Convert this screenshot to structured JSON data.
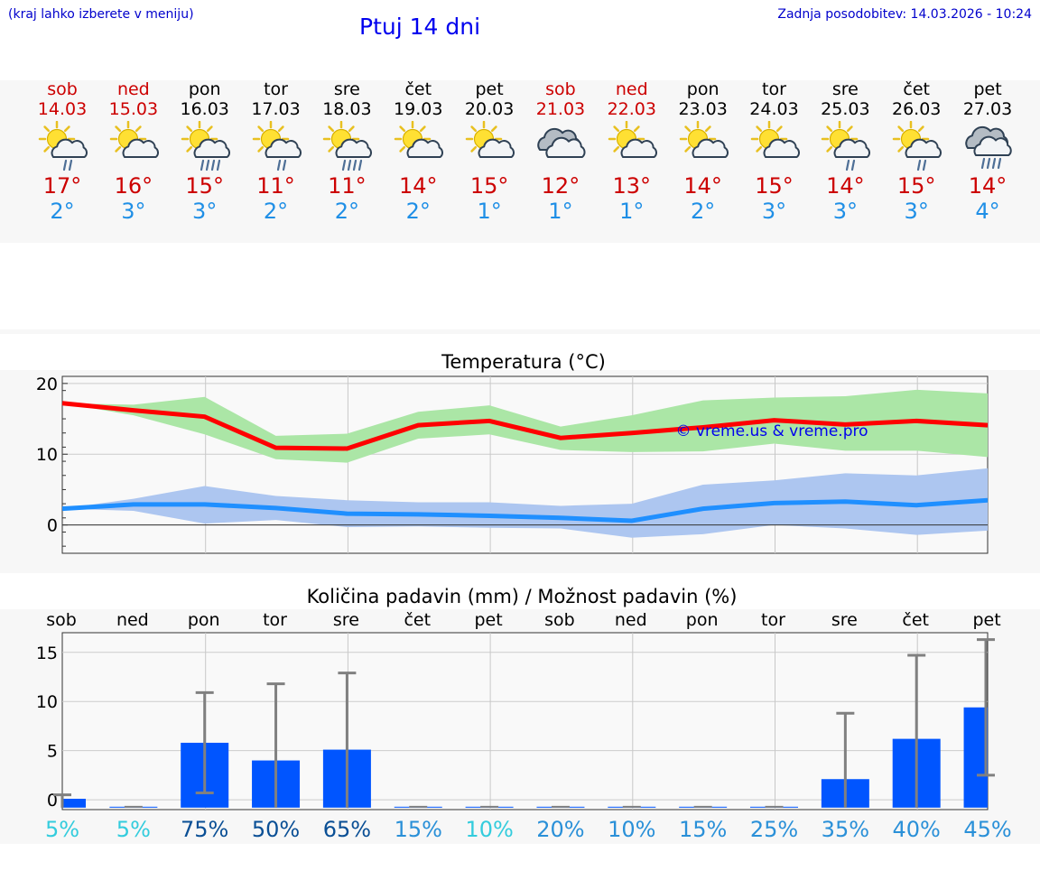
{
  "header": {
    "hint": "(kraj lahko izberete v meniju)",
    "title": "Ptuj 14 dni",
    "update": "Zadnja posodobitev: 14.03.2026 - 10:24"
  },
  "days": [
    {
      "name": "sob",
      "date": "14.03",
      "weekend": true,
      "icon": "sun-cloud-rain-icon",
      "max": "17°",
      "min": "2°"
    },
    {
      "name": "ned",
      "date": "15.03",
      "weekend": true,
      "icon": "sun-cloud-icon",
      "max": "16°",
      "min": "3°"
    },
    {
      "name": "pon",
      "date": "16.03",
      "weekend": false,
      "icon": "sun-cloud-heavy-rain-icon",
      "max": "15°",
      "min": "3°"
    },
    {
      "name": "tor",
      "date": "17.03",
      "weekend": false,
      "icon": "sun-cloud-rain-icon",
      "max": "11°",
      "min": "2°"
    },
    {
      "name": "sre",
      "date": "18.03",
      "weekend": false,
      "icon": "sun-cloud-heavy-rain-icon",
      "max": "11°",
      "min": "2°"
    },
    {
      "name": "čet",
      "date": "19.03",
      "weekend": false,
      "icon": "sun-cloud-icon",
      "max": "14°",
      "min": "2°"
    },
    {
      "name": "pet",
      "date": "20.03",
      "weekend": false,
      "icon": "sun-cloud-icon",
      "max": "15°",
      "min": "1°"
    },
    {
      "name": "sob",
      "date": "21.03",
      "weekend": true,
      "icon": "cloudy-icon",
      "max": "12°",
      "min": "1°"
    },
    {
      "name": "ned",
      "date": "22.03",
      "weekend": true,
      "icon": "sun-cloud-icon",
      "max": "13°",
      "min": "1°"
    },
    {
      "name": "pon",
      "date": "23.03",
      "weekend": false,
      "icon": "sun-cloud-icon",
      "max": "14°",
      "min": "2°"
    },
    {
      "name": "tor",
      "date": "24.03",
      "weekend": false,
      "icon": "sun-cloud-icon",
      "max": "15°",
      "min": "3°"
    },
    {
      "name": "sre",
      "date": "25.03",
      "weekend": false,
      "icon": "sun-cloud-rain-icon",
      "max": "14°",
      "min": "3°"
    },
    {
      "name": "čet",
      "date": "26.03",
      "weekend": false,
      "icon": "sun-cloud-rain-icon",
      "max": "15°",
      "min": "3°"
    },
    {
      "name": "pet",
      "date": "27.03",
      "weekend": false,
      "icon": "cloud-rain-icon",
      "max": "14°",
      "min": "4°"
    }
  ],
  "colors": {
    "max_line": "#ff0000",
    "max_band": "#abe6a6",
    "min_line": "#1f8fff",
    "min_band": "#adc6f0",
    "bar": "#0055ff",
    "error": "#808080",
    "watermark": "#0000ee"
  },
  "chart_data": [
    {
      "type": "line",
      "title": "Temperatura (°C)",
      "watermark": "© vreme.us & vreme.pro",
      "x": [
        0,
        1,
        2,
        3,
        4,
        5,
        6,
        7,
        8,
        9,
        10,
        11,
        12,
        13
      ],
      "ylim": [
        -4,
        21
      ],
      "yticks": [
        0,
        10,
        20
      ],
      "series": [
        {
          "name": "max",
          "values": [
            17.2,
            16.2,
            15.3,
            10.9,
            10.8,
            14.1,
            14.7,
            12.3,
            13.0,
            13.8,
            14.8,
            14.2,
            14.7,
            14.1
          ],
          "band_low": [
            17.2,
            15.5,
            12.8,
            9.3,
            8.8,
            12.2,
            12.8,
            10.6,
            10.3,
            10.4,
            11.5,
            10.5,
            10.5,
            9.6
          ],
          "band_high": [
            17.2,
            17.0,
            18.1,
            12.6,
            12.9,
            16.0,
            16.9,
            13.9,
            15.5,
            17.6,
            18.0,
            18.2,
            19.1,
            18.6
          ]
        },
        {
          "name": "min",
          "values": [
            2.3,
            2.9,
            2.9,
            2.4,
            1.6,
            1.5,
            1.3,
            1.0,
            0.6,
            2.3,
            3.1,
            3.3,
            2.8,
            3.5
          ],
          "band_low": [
            2.3,
            2.0,
            0.2,
            0.7,
            -0.3,
            -0.2,
            -0.4,
            -0.5,
            -1.8,
            -1.3,
            0.0,
            -0.5,
            -1.4,
            -0.8
          ],
          "band_high": [
            2.3,
            3.7,
            5.5,
            4.1,
            3.5,
            3.2,
            3.2,
            2.7,
            3.0,
            5.7,
            6.3,
            7.3,
            7.0,
            8.0
          ]
        }
      ]
    },
    {
      "type": "bar",
      "title": "Količina padavin (mm) / Možnost padavin (%)",
      "categories": [
        "sob",
        "ned",
        "pon",
        "tor",
        "sre",
        "čet",
        "pet",
        "sob",
        "ned",
        "pon",
        "tor",
        "sre",
        "čet",
        "pet"
      ],
      "values": [
        0.1,
        0,
        5.8,
        4.0,
        5.1,
        0,
        0,
        0,
        0,
        0,
        0,
        2.1,
        6.2,
        9.4
      ],
      "error_low": [
        0,
        0,
        0.7,
        0,
        0,
        0,
        0,
        0,
        0,
        0,
        0,
        0,
        0,
        2.5
      ],
      "error_high": [
        0.5,
        0,
        10.9,
        11.8,
        12.9,
        0,
        0,
        0,
        0,
        0,
        0,
        8.8,
        14.7,
        16.3
      ],
      "ylim": [
        -1,
        17
      ],
      "yticks": [
        0,
        5,
        10,
        15
      ],
      "probabilities": [
        "5%",
        "5%",
        "75%",
        "50%",
        "65%",
        "15%",
        "10%",
        "20%",
        "10%",
        "15%",
        "25%",
        "35%",
        "40%",
        "45%"
      ],
      "probability_colors": [
        "#33ccdd",
        "#33ccdd",
        "#0a4f95",
        "#0a4f95",
        "#0a4f95",
        "#2a90d8",
        "#33ccdd",
        "#2a90d8",
        "#2a90d8",
        "#2a90d8",
        "#2a90d8",
        "#2a90d8",
        "#2a90d8",
        "#2a90d8"
      ]
    }
  ]
}
